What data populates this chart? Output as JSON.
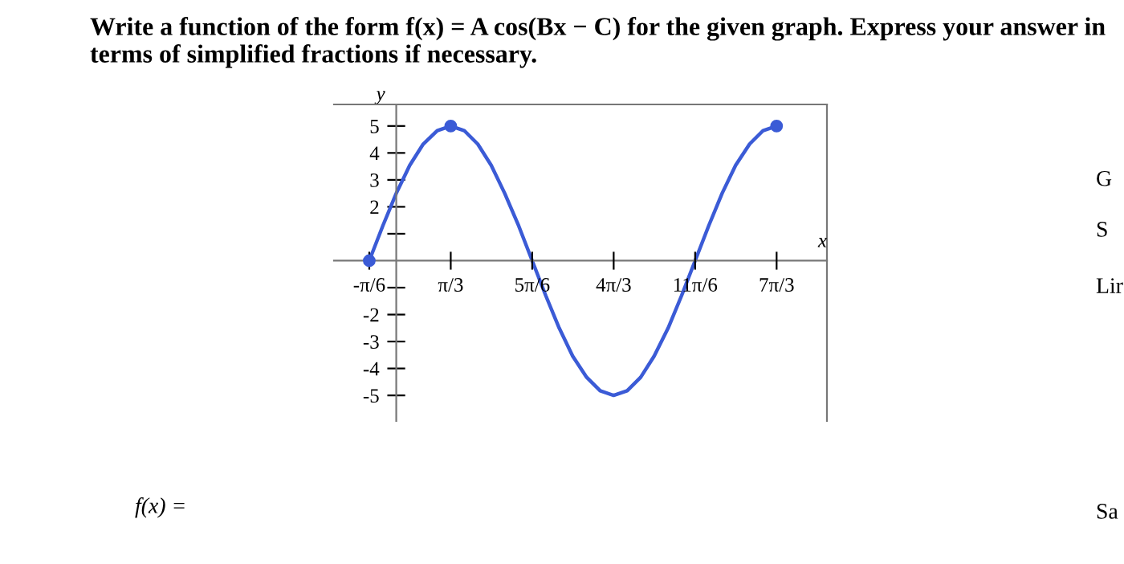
{
  "chart_data": {
    "type": "line",
    "title": "Write a function of the form f(x) = A cos(Bx − C) for the given graph. Express your answer in terms of simplified fractions if necessary.",
    "xlabel": "x",
    "ylabel": "y",
    "annotations": [
      "f(x) =",
      "G",
      "S",
      "Lir",
      "Sa"
    ],
    "series": [
      {
        "color": "#3b5bd6",
        "marker": "none",
        "x": [
          -0.52,
          -0.26,
          0,
          0.26,
          0.52,
          0.79,
          1.05,
          1.31,
          1.57,
          1.83,
          2.09,
          2.36,
          2.62,
          2.88,
          3.14,
          3.4,
          3.67,
          3.93,
          4.19,
          4.45,
          4.71,
          4.97,
          5.24,
          5.5,
          5.76,
          6.02,
          6.28,
          6.54,
          6.81,
          7.07,
          7.33
        ],
        "values": [
          0,
          1.29,
          2.5,
          3.54,
          4.33,
          4.83,
          5,
          4.83,
          4.33,
          3.54,
          2.5,
          1.29,
          0,
          -1.29,
          -2.5,
          -3.54,
          -4.33,
          -4.83,
          -5,
          -4.83,
          -4.33,
          -3.54,
          -2.5,
          -1.29,
          0,
          1.29,
          2.5,
          3.54,
          4.33,
          4.83,
          5
        ]
      },
      {
        "type": "scatter",
        "color": "#3b5bd6",
        "marker": "circle",
        "x": [
          -0.52,
          1.05,
          7.33
        ],
        "values": [
          0,
          5,
          5
        ]
      }
    ],
    "xlim": [
      -1.2,
      8.3
    ],
    "ylim": [
      -5.95,
      5.8
    ],
    "xticks": [
      {
        "value": -0.52,
        "label": "-π/6"
      },
      {
        "value": 1.05,
        "label": "π/3"
      },
      {
        "value": 2.62,
        "label": "5π/6"
      },
      {
        "value": 4.19,
        "label": "4π/3"
      },
      {
        "value": 5.76,
        "label": "11π/6"
      },
      {
        "value": 7.33,
        "label": "7π/3"
      }
    ],
    "yticks": [
      -5,
      -4,
      -3,
      -2,
      {
        "value": -1,
        "label": null
      },
      {
        "value": 1,
        "label": null
      },
      2,
      3,
      4,
      5
    ],
    "grid": false,
    "legend": false
  }
}
